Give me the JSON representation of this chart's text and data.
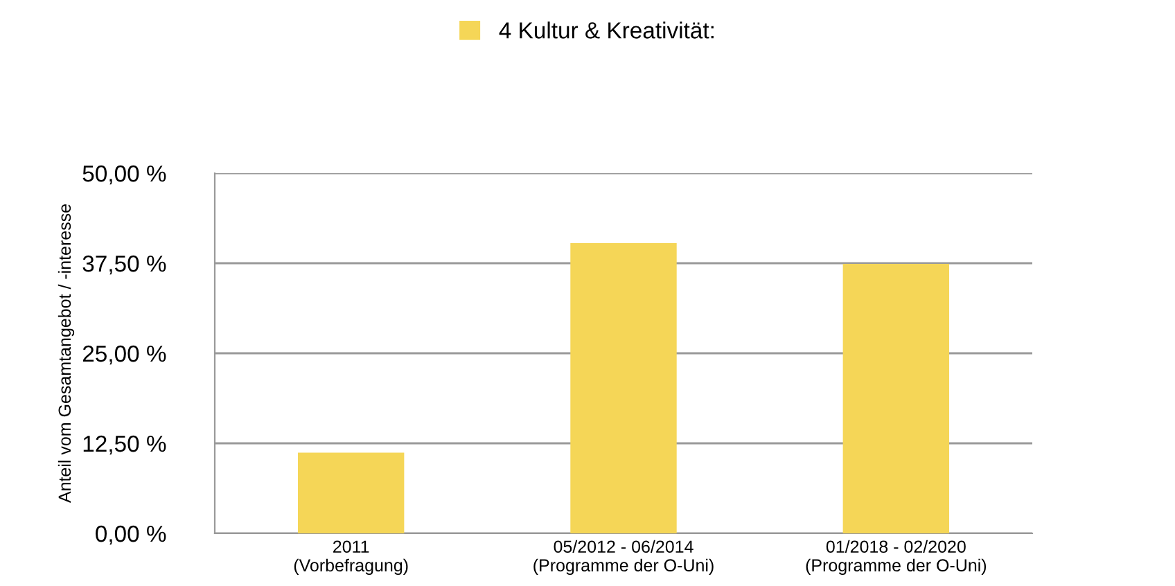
{
  "chart_data": {
    "type": "bar",
    "categories": [
      "2011\n(Vorbefragung)",
      "05/2012 - 06/2014\n(Programme der O-Uni)",
      "01/2018 - 02/2020\n(Programme der O-Uni)"
    ],
    "series": [
      {
        "name": "4 Kultur & Kreativität:",
        "color": "#f5d657",
        "values": [
          11.2,
          40.3,
          37.4
        ]
      }
    ],
    "ylabel": "Anteil vom Gesamtangebot / -interesse",
    "ylim": [
      0,
      50
    ],
    "yticks": [
      {
        "value": 0,
        "label": "0,00 %"
      },
      {
        "value": 12.5,
        "label": "12,50 %"
      },
      {
        "value": 25,
        "label": "25,00 %"
      },
      {
        "value": 37.5,
        "label": "37,50 %"
      },
      {
        "value": 50,
        "label": "50,00 %"
      }
    ],
    "grid": "y",
    "legend": "top"
  }
}
